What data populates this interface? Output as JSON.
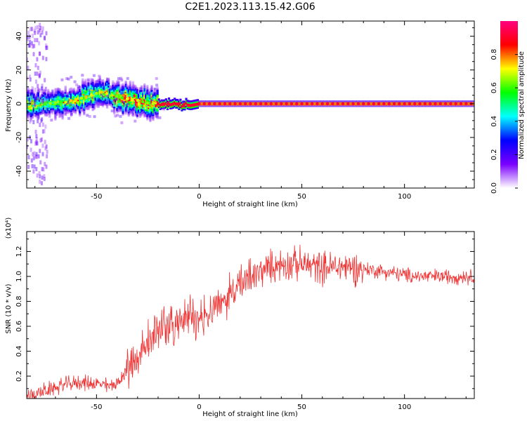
{
  "title": "C2E1.2023.113.15.42.G06",
  "chart_data": [
    {
      "type": "heatmap",
      "xlabel": "Height of straight line (km)",
      "ylabel": "Frequency (Hz)",
      "xlim": [
        -84,
        134
      ],
      "ylim": [
        -50,
        49
      ],
      "xticks": [
        -50,
        0,
        50,
        100
      ],
      "xtick_labels": [
        "-50",
        "0",
        "50",
        "100"
      ],
      "yticks": [
        -40,
        -20,
        0,
        20,
        40
      ],
      "ytick_labels": [
        "-40",
        "-20",
        "0",
        "20",
        "40"
      ],
      "grid": false,
      "colorbar": {
        "label": "Normalized spectral amplitude",
        "range": [
          0,
          1
        ],
        "ticks": [
          0.0,
          0.2,
          0.4,
          0.6,
          0.8
        ],
        "tick_labels": [
          "0.0",
          "0.2",
          "0.4",
          "0.6",
          "0.8"
        ],
        "colormap": [
          "#ffffff",
          "#7b00ff",
          "#0000ff",
          "#00ffff",
          "#00ff00",
          "#ffff00",
          "#ff0000",
          "#ff0080"
        ]
      },
      "ridge": {
        "description_points_x": [
          -84,
          -75,
          -65,
          -55,
          -48,
          -42,
          -36,
          -30,
          -24,
          -18,
          -10,
          -4,
          0,
          134
        ],
        "description_points_y": [
          -1,
          0,
          1,
          4,
          7,
          5,
          3,
          2,
          0,
          0,
          0,
          -1,
          0,
          0
        ]
      }
    },
    {
      "type": "line",
      "xlabel": "Height of straight line (km)",
      "ylabel": "SNR (10 * v/v)",
      "yscale_label": "(x10⁴)",
      "xlim": [
        -84,
        134
      ],
      "ylim": [
        0.02,
        1.36
      ],
      "xticks": [
        -50,
        0,
        50,
        100
      ],
      "xtick_labels": [
        "-50",
        "0",
        "50",
        "100"
      ],
      "yticks": [
        0.2,
        0.4,
        0.6,
        0.8,
        1.0,
        1.2
      ],
      "ytick_labels": [
        "0.2",
        "0.4",
        "0.6",
        "0.8",
        "1.0",
        "1.2"
      ],
      "grid": false,
      "series": [
        {
          "color": "#ee3333",
          "x": [
            -84,
            -75,
            -66,
            -58,
            -50,
            -44,
            -38,
            -34,
            -30,
            -26,
            -20,
            -12,
            -5,
            0,
            5,
            10,
            15,
            20,
            25,
            30,
            35,
            40,
            50,
            60,
            70,
            80,
            90,
            100,
            110,
            120,
            134
          ],
          "values": [
            0.04,
            0.08,
            0.13,
            0.15,
            0.14,
            0.12,
            0.16,
            0.32,
            0.36,
            0.45,
            0.56,
            0.62,
            0.68,
            0.68,
            0.72,
            0.8,
            0.86,
            0.92,
            0.98,
            1.04,
            1.08,
            1.1,
            1.1,
            1.07,
            1.08,
            1.06,
            1.04,
            1.01,
            1.0,
            1.0,
            1.0
          ]
        }
      ]
    }
  ]
}
